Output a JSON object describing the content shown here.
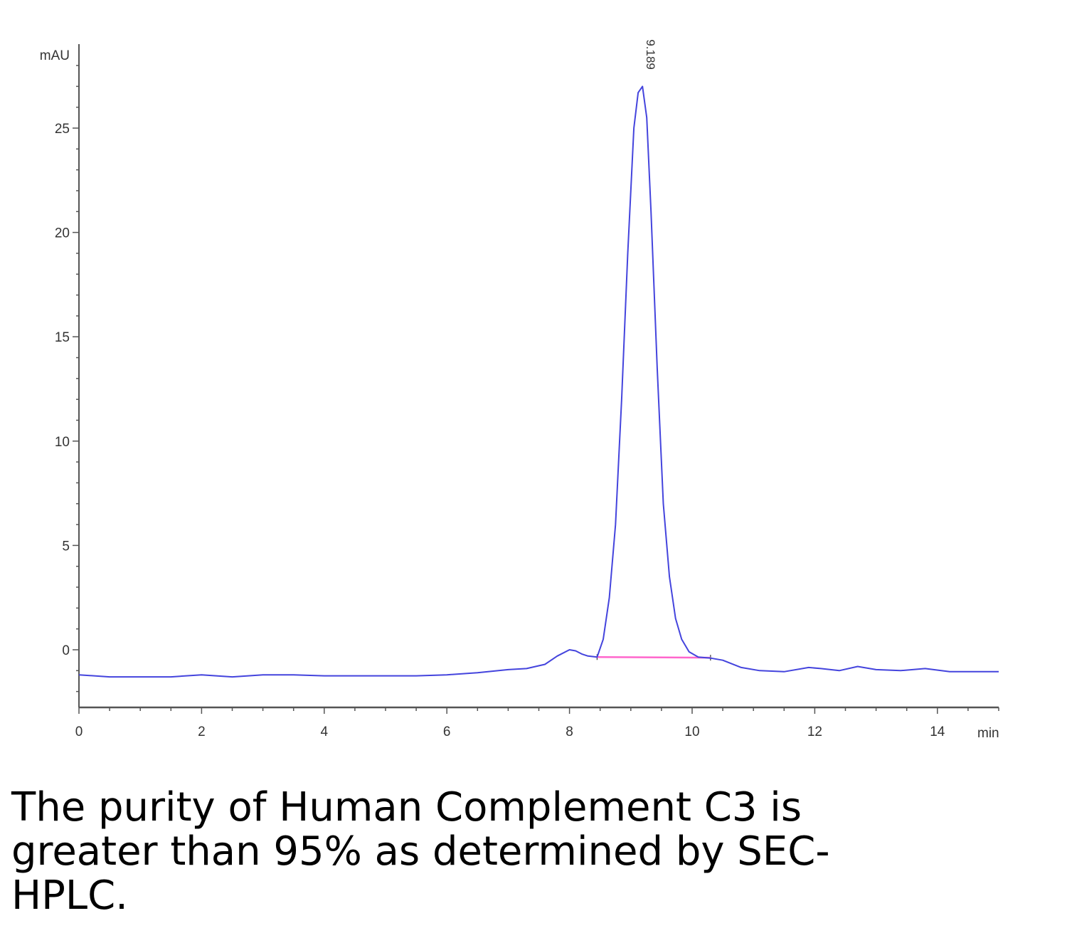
{
  "caption": "The purity of Human Complement C3 is greater than 95% as determined by SEC-HPLC.",
  "chart_data": {
    "type": "line",
    "ylabel": "mAU",
    "xlabel": "min",
    "xlim": [
      0,
      15
    ],
    "ylim": [
      -2.7,
      29
    ],
    "x_ticks": [
      0,
      2,
      4,
      6,
      8,
      10,
      12,
      14
    ],
    "y_ticks": [
      0,
      5,
      10,
      15,
      20,
      25
    ],
    "grid": false,
    "peak_label": {
      "text": "9.189",
      "x": 9.189,
      "y": 27.0
    },
    "baseline": {
      "x": [
        8.45,
        10.3
      ],
      "y": [
        -0.35,
        -0.38
      ],
      "color": "#ff66cc"
    },
    "series": [
      {
        "color": "#4444dd",
        "x": [
          0,
          0.5,
          1.0,
          1.5,
          2.0,
          2.5,
          3.0,
          3.5,
          4.0,
          4.5,
          5.0,
          5.5,
          6.0,
          6.5,
          7.0,
          7.3,
          7.6,
          7.8,
          8.0,
          8.1,
          8.2,
          8.3,
          8.45,
          8.55,
          8.65,
          8.75,
          8.85,
          8.95,
          9.05,
          9.12,
          9.19,
          9.26,
          9.33,
          9.43,
          9.53,
          9.63,
          9.73,
          9.83,
          9.95,
          10.1,
          10.3,
          10.5,
          10.8,
          11.1,
          11.5,
          11.9,
          12.1,
          12.4,
          12.7,
          13.0,
          13.4,
          13.8,
          14.2,
          14.6,
          15.0
        ],
        "y": [
          -1.2,
          -1.3,
          -1.3,
          -1.3,
          -1.2,
          -1.3,
          -1.2,
          -1.2,
          -1.25,
          -1.25,
          -1.25,
          -1.25,
          -1.2,
          -1.1,
          -0.95,
          -0.9,
          -0.7,
          -0.3,
          0.0,
          -0.05,
          -0.2,
          -0.3,
          -0.35,
          0.5,
          2.5,
          6.0,
          12.0,
          19.0,
          25.0,
          26.7,
          27.0,
          25.5,
          21.0,
          13.5,
          7.0,
          3.5,
          1.5,
          0.5,
          -0.1,
          -0.35,
          -0.4,
          -0.5,
          -0.85,
          -1.0,
          -1.05,
          -0.85,
          -0.9,
          -1.0,
          -0.8,
          -0.95,
          -1.0,
          -0.9,
          -1.05,
          -1.05,
          -1.05
        ]
      }
    ]
  }
}
